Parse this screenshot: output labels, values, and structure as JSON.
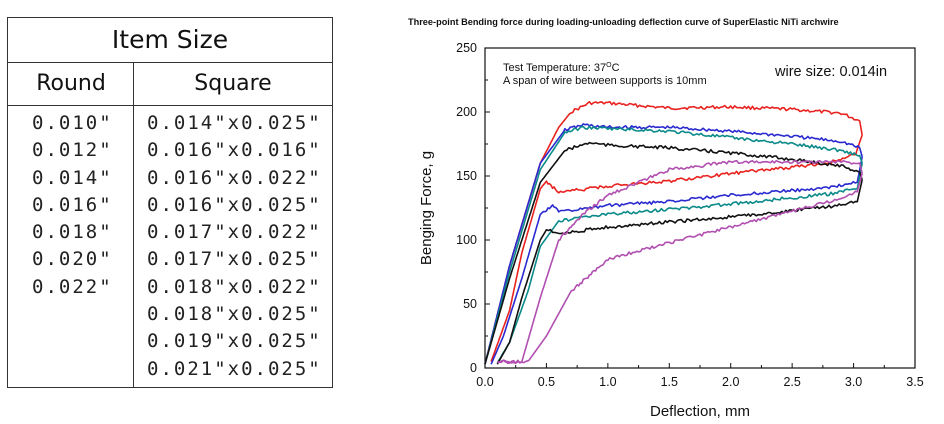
{
  "table": {
    "title": "Item Size",
    "headers": [
      "Round",
      "Square"
    ],
    "round": [
      "0.010\"",
      "0.012\"",
      "0.014\"",
      "0.016\"",
      "0.018\"",
      "0.020\"",
      "0.022\""
    ],
    "square": [
      "0.014\"x0.025\"",
      "0.016\"x0.016\"",
      "0.016\"x0.022\"",
      "0.016\"x0.025\"",
      "0.017\"x0.022\"",
      "0.017\"x0.025\"",
      "0.018\"x0.022\"",
      "0.018\"x0.025\"",
      "0.019\"x0.025\"",
      "0.021\"x0.025\""
    ]
  },
  "chart_data": {
    "type": "line",
    "title": "Three-point Bending force during loading-unloading deflection curve of  SuperElastic NiTi archwire",
    "xlabel": "Deflection,  mm",
    "ylabel": "Benging Force,  g",
    "xlim": [
      0,
      3.5
    ],
    "ylim": [
      0,
      250
    ],
    "xticks": [
      "0.0",
      "0.5",
      "1.0",
      "1.5",
      "2.0",
      "2.5",
      "3.0",
      "3.5"
    ],
    "yticks": [
      "0",
      "50",
      "100",
      "150",
      "200",
      "250"
    ],
    "annotations": {
      "temp_prefix": "Test Temperature: 37",
      "temp_sup": "O",
      "temp_suffix": "C",
      "span": "A span of wire between supports is 10mm",
      "wire_size": "wire size: 0.014in"
    },
    "grid": false,
    "series": [
      {
        "color": "#e8231f",
        "loading": [
          [
            0,
            3
          ],
          [
            0.2,
            80
          ],
          [
            0.45,
            160
          ],
          [
            0.6,
            188
          ],
          [
            0.7,
            200
          ],
          [
            0.85,
            207
          ],
          [
            1.0,
            207
          ],
          [
            1.5,
            203
          ],
          [
            2.0,
            204
          ],
          [
            2.5,
            202
          ],
          [
            2.9,
            199
          ],
          [
            3.05,
            193
          ],
          [
            3.07,
            182
          ]
        ],
        "unloading": [
          [
            3.07,
            182
          ],
          [
            3.02,
            168
          ],
          [
            2.8,
            160
          ],
          [
            2.4,
            156
          ],
          [
            2.0,
            152
          ],
          [
            1.5,
            146
          ],
          [
            1.0,
            142
          ],
          [
            0.6,
            137
          ],
          [
            0.5,
            146
          ],
          [
            0.45,
            140
          ],
          [
            0.3,
            90
          ],
          [
            0.2,
            45
          ],
          [
            0.05,
            5
          ]
        ]
      },
      {
        "color": "#2a2ad0",
        "loading": [
          [
            0,
            3
          ],
          [
            0.2,
            80
          ],
          [
            0.45,
            160
          ],
          [
            0.65,
            186
          ],
          [
            0.8,
            190
          ],
          [
            1.0,
            188
          ],
          [
            1.5,
            188
          ],
          [
            2.0,
            185
          ],
          [
            2.5,
            181
          ],
          [
            2.9,
            177
          ],
          [
            3.05,
            172
          ],
          [
            3.07,
            165
          ]
        ],
        "unloading": [
          [
            3.07,
            165
          ],
          [
            3.03,
            145
          ],
          [
            2.8,
            141
          ],
          [
            2.4,
            138
          ],
          [
            2.0,
            135
          ],
          [
            1.5,
            130
          ],
          [
            1.0,
            127
          ],
          [
            0.6,
            122
          ],
          [
            0.55,
            127
          ],
          [
            0.45,
            120
          ],
          [
            0.3,
            70
          ],
          [
            0.15,
            25
          ],
          [
            0.05,
            3
          ]
        ]
      },
      {
        "color": "#0b8a8a",
        "loading": [
          [
            0,
            3
          ],
          [
            0.2,
            75
          ],
          [
            0.45,
            155
          ],
          [
            0.65,
            184
          ],
          [
            0.8,
            188
          ],
          [
            1.0,
            187
          ],
          [
            1.5,
            185
          ],
          [
            2.0,
            180
          ],
          [
            2.5,
            175
          ],
          [
            2.9,
            170
          ],
          [
            3.05,
            166
          ],
          [
            3.07,
            160
          ]
        ],
        "unloading": [
          [
            3.07,
            160
          ],
          [
            3.03,
            140
          ],
          [
            2.8,
            136
          ],
          [
            2.4,
            132
          ],
          [
            2.0,
            128
          ],
          [
            1.5,
            124
          ],
          [
            1.0,
            120
          ],
          [
            0.6,
            115
          ],
          [
            0.45,
            95
          ],
          [
            0.35,
            60
          ],
          [
            0.2,
            20
          ],
          [
            0.1,
            4
          ]
        ]
      },
      {
        "color": "#111111",
        "loading": [
          [
            0,
            3
          ],
          [
            0.2,
            70
          ],
          [
            0.45,
            145
          ],
          [
            0.65,
            170
          ],
          [
            0.85,
            176
          ],
          [
            1.0,
            174
          ],
          [
            1.5,
            172
          ],
          [
            2.0,
            168
          ],
          [
            2.5,
            163
          ],
          [
            2.9,
            158
          ],
          [
            3.05,
            153
          ],
          [
            3.07,
            147
          ]
        ],
        "unloading": [
          [
            3.07,
            147
          ],
          [
            3.03,
            130
          ],
          [
            2.8,
            126
          ],
          [
            2.4,
            122
          ],
          [
            2.0,
            118
          ],
          [
            1.5,
            114
          ],
          [
            1.0,
            110
          ],
          [
            0.6,
            105
          ],
          [
            0.5,
            108
          ],
          [
            0.45,
            100
          ],
          [
            0.3,
            55
          ],
          [
            0.2,
            20
          ],
          [
            0.1,
            3
          ]
        ]
      },
      {
        "color": "#b04fb0",
        "loading": [
          [
            0.1,
            5
          ],
          [
            0.3,
            5
          ],
          [
            0.45,
            55
          ],
          [
            0.6,
            100
          ],
          [
            0.8,
            120
          ],
          [
            1.0,
            135
          ],
          [
            1.5,
            155
          ],
          [
            2.0,
            161
          ],
          [
            2.5,
            161
          ],
          [
            2.9,
            161
          ],
          [
            3.05,
            160
          ],
          [
            3.07,
            152
          ]
        ],
        "unloading": [
          [
            3.07,
            152
          ],
          [
            3.03,
            138
          ],
          [
            2.8,
            130
          ],
          [
            2.4,
            120
          ],
          [
            2.0,
            110
          ],
          [
            1.5,
            98
          ],
          [
            1.0,
            85
          ],
          [
            0.7,
            60
          ],
          [
            0.5,
            25
          ],
          [
            0.35,
            5
          ],
          [
            0.1,
            5
          ]
        ]
      }
    ]
  }
}
